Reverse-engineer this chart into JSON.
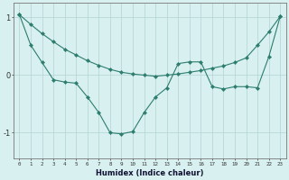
{
  "title": "",
  "xlabel": "Humidex (Indice chaleur)",
  "bg_color": "#d8f0f0",
  "line_color": "#2d7d6e",
  "grid_color": "#b8d8d8",
  "x_ticks": [
    0,
    1,
    2,
    3,
    4,
    5,
    6,
    7,
    8,
    9,
    10,
    11,
    12,
    13,
    14,
    15,
    16,
    17,
    18,
    19,
    20,
    21,
    22,
    23
  ],
  "series1_x": [
    0,
    1,
    2,
    3,
    4,
    5,
    6,
    7,
    8,
    9,
    10,
    11,
    12,
    13,
    14,
    15,
    16,
    17,
    18,
    19,
    20,
    21,
    22,
    23
  ],
  "series1_y": [
    1.05,
    0.88,
    0.72,
    0.58,
    0.45,
    0.35,
    0.25,
    0.17,
    0.1,
    0.05,
    0.02,
    0.0,
    -0.02,
    0.0,
    0.02,
    0.05,
    0.08,
    0.12,
    0.16,
    0.22,
    0.3,
    0.52,
    0.75,
    1.02
  ],
  "series2_x": [
    0,
    1,
    2,
    3,
    4,
    5,
    6,
    7,
    8,
    9,
    10,
    11,
    12,
    13,
    14,
    15,
    16,
    17,
    18,
    19,
    20,
    21,
    22,
    23
  ],
  "series2_y": [
    1.05,
    0.52,
    0.22,
    -0.08,
    -0.12,
    -0.14,
    -0.38,
    -0.65,
    -1.0,
    -1.02,
    -0.98,
    -0.65,
    -0.38,
    -0.22,
    0.2,
    0.23,
    0.23,
    -0.2,
    -0.24,
    -0.2,
    -0.2,
    -0.22,
    0.32,
    1.02
  ],
  "ylim": [
    -1.45,
    1.25
  ],
  "yticks": [
    -1,
    0,
    1
  ],
  "yticklabels": [
    "-1",
    "0",
    "1"
  ]
}
